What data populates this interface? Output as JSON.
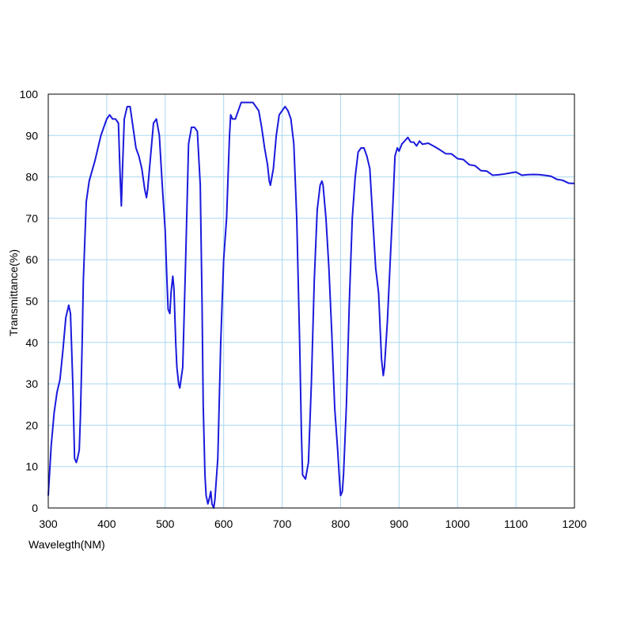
{
  "chart_data": {
    "type": "line",
    "title": "",
    "xlabel": "Wavelegth(NM)",
    "ylabel": "Transmittance(%)",
    "xlim": [
      300,
      1200
    ],
    "ylim": [
      0,
      100
    ],
    "x_ticks": [
      300,
      400,
      500,
      600,
      700,
      800,
      900,
      1000,
      1100,
      1200
    ],
    "y_ticks": [
      0,
      10,
      20,
      30,
      40,
      50,
      60,
      70,
      80,
      90,
      100
    ],
    "grid": true,
    "legend": "none",
    "colors": {
      "line": "#1a1adc",
      "grid": "#a8d8f0",
      "frame": "#000000"
    },
    "series": [
      {
        "x": [
          300,
          305,
          310,
          315,
          320,
          325,
          330,
          335,
          338,
          342,
          345,
          348,
          350,
          353,
          355,
          358,
          360,
          365,
          370,
          380,
          390,
          400,
          405,
          410,
          415,
          420,
          423,
          425,
          427,
          430,
          435,
          440,
          445,
          450,
          455,
          460,
          465,
          468,
          470,
          475,
          480,
          485,
          490,
          495,
          500,
          503,
          505,
          508,
          510,
          513,
          515,
          518,
          520,
          523,
          525,
          530,
          535,
          540,
          545,
          550,
          555,
          560,
          563,
          565,
          568,
          570,
          573,
          575,
          578,
          580,
          583,
          585,
          590,
          595,
          600,
          605,
          610,
          612,
          615,
          620,
          625,
          630,
          640,
          650,
          660,
          665,
          670,
          675,
          678,
          680,
          685,
          690,
          695,
          700,
          705,
          710,
          715,
          720,
          725,
          730,
          733,
          735,
          740,
          745,
          750,
          755,
          760,
          765,
          768,
          770,
          775,
          780,
          785,
          790,
          795,
          798,
          800,
          803,
          805,
          810,
          815,
          820,
          825,
          830,
          835,
          840,
          845,
          850,
          855,
          860,
          865,
          870,
          873,
          875,
          880,
          885,
          890,
          893,
          895,
          897,
          900,
          905,
          910,
          915,
          920,
          925,
          930,
          935,
          940,
          950,
          960,
          970,
          980,
          990,
          1000,
          1010,
          1020,
          1030,
          1040,
          1050,
          1060,
          1070,
          1080,
          1090,
          1100,
          1110,
          1120,
          1130,
          1140,
          1150,
          1160,
          1170,
          1180,
          1190,
          1200
        ],
        "y": [
          3,
          15,
          23,
          28,
          31,
          38,
          46,
          49,
          47,
          30,
          12,
          11,
          12,
          14,
          22,
          40,
          55,
          74,
          79,
          84,
          90,
          94,
          95,
          94,
          94,
          93,
          80,
          73,
          82,
          94,
          97,
          97,
          92,
          87,
          85,
          82,
          77,
          75,
          77,
          85,
          93,
          94,
          90,
          78,
          67,
          55,
          48,
          47,
          52,
          56,
          53,
          40,
          34,
          30,
          29,
          34,
          60,
          88,
          92,
          92,
          91,
          78,
          50,
          25,
          8,
          3,
          1,
          2,
          4,
          1,
          0,
          2,
          12,
          40,
          60,
          70,
          90,
          95,
          94,
          94,
          96,
          98,
          98,
          98,
          96,
          92,
          87,
          83,
          79,
          78,
          82,
          90,
          95,
          96,
          97,
          96,
          94,
          88,
          70,
          40,
          18,
          8,
          7,
          11,
          30,
          55,
          72,
          78,
          79,
          78,
          70,
          58,
          42,
          24,
          14,
          7,
          3,
          4,
          8,
          25,
          50,
          70,
          80,
          86,
          87,
          87,
          85,
          82,
          70,
          58,
          52,
          36,
          32,
          34,
          45,
          60,
          75,
          85,
          86,
          87,
          86,
          88,
          89,
          90,
          89,
          89,
          88,
          89,
          88,
          88,
          87,
          86,
          85,
          85,
          84,
          84,
          83,
          83,
          82,
          82,
          81,
          81,
          81,
          81,
          81,
          80,
          80,
          80,
          80,
          80,
          80,
          79.5,
          79.5,
          79,
          79
        ]
      }
    ]
  }
}
